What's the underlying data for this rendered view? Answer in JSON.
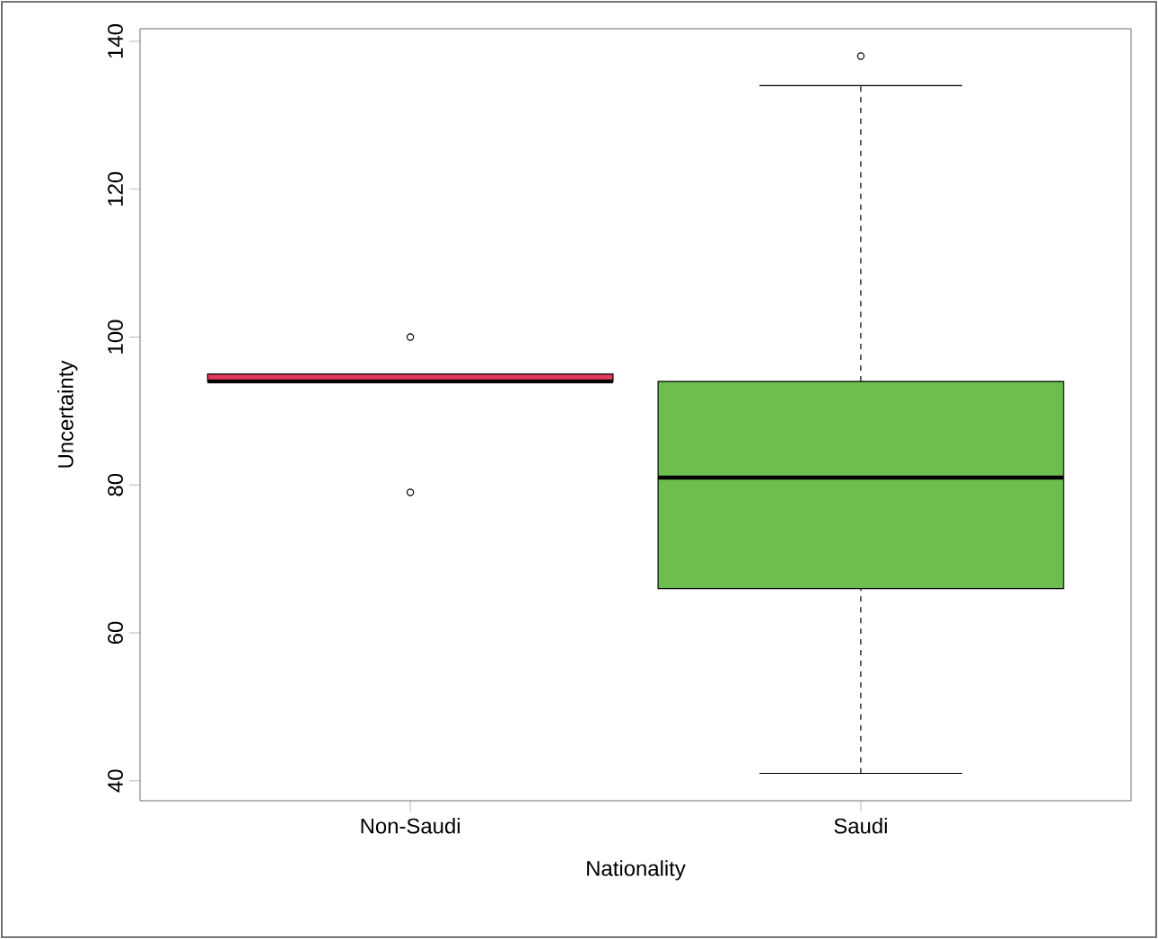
{
  "chart_data": {
    "type": "box",
    "xlabel": "Nationality",
    "ylabel": "Uncertainty",
    "categories": [
      "Non-Saudi",
      "Saudi"
    ],
    "boxes": [
      {
        "low": 94,
        "q1": 94,
        "median": 94,
        "q3": 95,
        "high": 95,
        "outliers": [
          100,
          79
        ]
      },
      {
        "low": 41,
        "q1": 66,
        "median": 81,
        "q3": 94,
        "high": 134,
        "outliers": [
          138
        ]
      }
    ],
    "colors": [
      "#e03a5c",
      "#6cbf4e"
    ],
    "ylim": [
      37.3,
      141.7
    ],
    "yticks": [
      40,
      60,
      80,
      100,
      120,
      140
    ]
  }
}
